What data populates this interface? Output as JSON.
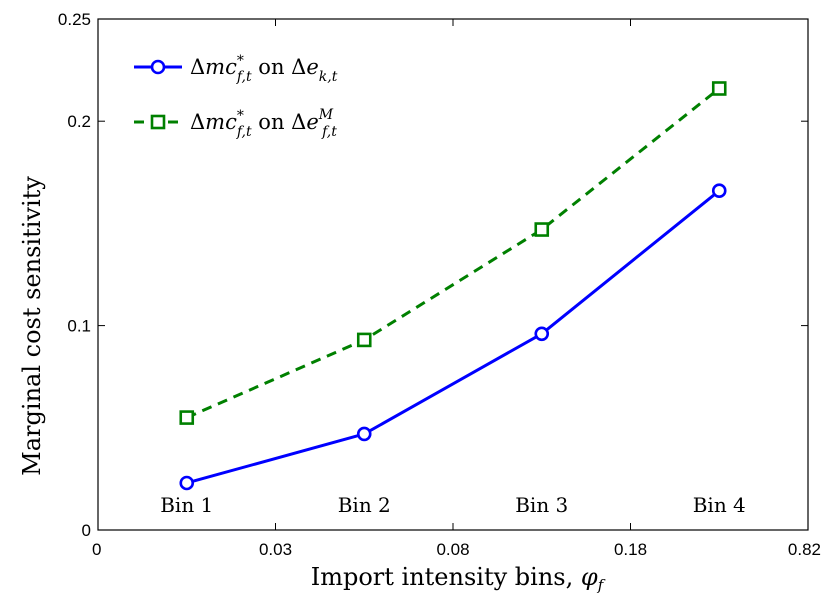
{
  "chart_data": {
    "type": "line",
    "xlabel_text": "Import intensity bins, ",
    "xlabel_symbol": "φ",
    "xlabel_sub": "f",
    "ylabel": "Marginal cost sensitivity",
    "ylim": [
      0,
      0.25
    ],
    "y_ticks": [
      "0",
      "0.1",
      "0.2",
      "0.25"
    ],
    "y_tick_values": [
      0,
      0.1,
      0.2,
      0.25
    ],
    "x_ticks": [
      "0",
      "0.03",
      "0.08",
      "0.18",
      "0.82"
    ],
    "categories": [
      "Bin 1",
      "Bin 2",
      "Bin 3",
      "Bin 4"
    ],
    "grid": false,
    "legend_position": "top-left",
    "series": [
      {
        "label_parts": [
          "Δ",
          "mc",
          "*",
          "f,t",
          " on ",
          "Δ",
          "e",
          "",
          "k,t"
        ],
        "values": [
          0.023,
          0.047,
          0.096,
          0.166
        ],
        "color": "#0000ff",
        "line": "solid",
        "marker": "circle"
      },
      {
        "label_parts": [
          "Δ",
          "mc",
          "*",
          "f,t",
          " on ",
          "Δ",
          "e",
          "M",
          "f,t"
        ],
        "values": [
          0.055,
          0.093,
          0.147,
          0.216
        ],
        "color": "#008000",
        "line": "dashed",
        "marker": "square"
      }
    ]
  }
}
